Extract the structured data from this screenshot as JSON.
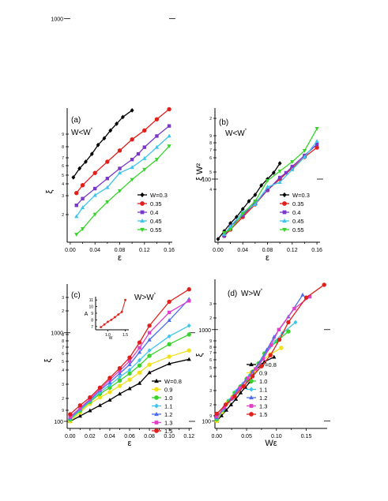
{
  "chart_data": [
    {
      "type": "line",
      "panel_label": "(a)",
      "condition": "W<W*",
      "xlabel": "ε",
      "ylabel": "ξ",
      "xlim": [
        -0.005,
        0.165
      ],
      "ylim": [
        1.0,
        2.2
      ],
      "ylog": true,
      "x_ticks": [
        0.0,
        0.04,
        0.08,
        0.12,
        0.16
      ],
      "x_tick_labels": [
        "0.00",
        "0.04",
        "0.08",
        "0.12",
        "0.16"
      ],
      "y_ticks": [
        1000
      ],
      "y_tick_labels": [
        "1000"
      ],
      "y_minor_labels": [
        "9",
        "8",
        "7",
        "6",
        "5",
        "4",
        "3",
        "2"
      ],
      "legend_position": "bottom-right",
      "legend_prefix": "W=",
      "series": [
        {
          "name": "0.3",
          "color": "#000000",
          "marker": "diamond",
          "x": [
            0.005,
            0.015,
            0.025,
            0.035,
            0.045,
            0.055,
            0.065,
            0.075,
            0.085,
            0.1
          ],
          "y": [
            1.58,
            1.66,
            1.72,
            1.79,
            1.87,
            1.93,
            2.0,
            2.06,
            2.12,
            2.18
          ]
        },
        {
          "name": "0.35",
          "color": "#e0201c",
          "marker": "circle",
          "x": [
            0.01,
            0.02,
            0.04,
            0.06,
            0.08,
            0.1,
            0.12,
            0.14,
            0.16
          ],
          "y": [
            1.44,
            1.51,
            1.62,
            1.72,
            1.82,
            1.92,
            2.0,
            2.1,
            2.19
          ]
        },
        {
          "name": "0.4",
          "color": "#7b38c8",
          "marker": "square",
          "x": [
            0.01,
            0.02,
            0.04,
            0.06,
            0.08,
            0.1,
            0.11,
            0.12,
            0.14,
            0.16
          ],
          "y": [
            1.33,
            1.39,
            1.48,
            1.57,
            1.66,
            1.74,
            1.79,
            1.85,
            1.95,
            2.04
          ]
        },
        {
          "name": "0.45",
          "color": "#3ec4ee",
          "marker": "triangle-up",
          "x": [
            0.01,
            0.02,
            0.04,
            0.06,
            0.08,
            0.1,
            0.12,
            0.14,
            0.16
          ],
          "y": [
            1.23,
            1.31,
            1.42,
            1.49,
            1.62,
            1.67,
            1.75,
            1.85,
            1.95
          ]
        },
        {
          "name": "0.55",
          "color": "#38d42c",
          "marker": "triangle-down",
          "x": [
            0.01,
            0.02,
            0.04,
            0.06,
            0.08,
            0.1,
            0.12,
            0.14,
            0.16
          ],
          "y": [
            1.07,
            1.12,
            1.25,
            1.36,
            1.46,
            1.56,
            1.65,
            1.74,
            1.86
          ]
        }
      ]
    },
    {
      "type": "line",
      "panel_label": "(b)",
      "condition": "W<W*",
      "xlabel": "ε",
      "ylabel": "ξ W²",
      "xlim": [
        -0.005,
        0.165
      ],
      "ylim": [
        1.6,
        2.45
      ],
      "ylog": true,
      "x_ticks": [
        0.0,
        0.04,
        0.08,
        0.12,
        0.16
      ],
      "x_tick_labels": [
        "0.00",
        "0.04",
        "0.08",
        "0.12",
        "0.16"
      ],
      "y_ticks": [
        100
      ],
      "y_tick_labels": [
        "100"
      ],
      "y_minor_labels": [
        "2",
        "9",
        "8",
        "7",
        "6",
        "5",
        "4"
      ],
      "legend_position": "bottom-right",
      "legend_prefix": "W=",
      "series": [
        {
          "name": "0.3",
          "color": "#000000",
          "marker": "diamond",
          "x": [
            0.0,
            0.01,
            0.02,
            0.03,
            0.04,
            0.05,
            0.06,
            0.07,
            0.08,
            0.09,
            0.1
          ],
          "y": [
            1.62,
            1.67,
            1.72,
            1.76,
            1.81,
            1.86,
            1.9,
            1.96,
            2.0,
            2.04,
            2.1
          ]
        },
        {
          "name": "0.35",
          "color": "#e0201c",
          "marker": "circle",
          "x": [
            0.01,
            0.02,
            0.04,
            0.06,
            0.08,
            0.1,
            0.12,
            0.14,
            0.16
          ],
          "y": [
            1.64,
            1.68,
            1.76,
            1.84,
            1.93,
            2.0,
            2.07,
            2.14,
            2.2
          ]
        },
        {
          "name": "0.4",
          "color": "#7b38c8",
          "marker": "square",
          "x": [
            0.01,
            0.02,
            0.04,
            0.06,
            0.08,
            0.1,
            0.11,
            0.12,
            0.14,
            0.16
          ],
          "y": [
            1.64,
            1.7,
            1.77,
            1.85,
            1.93,
            2.01,
            2.04,
            2.08,
            2.15,
            2.22
          ]
        },
        {
          "name": "0.45",
          "color": "#3ec4ee",
          "marker": "triangle-up",
          "x": [
            0.01,
            0.02,
            0.04,
            0.06,
            0.08,
            0.1,
            0.12,
            0.14,
            0.16
          ],
          "y": [
            1.65,
            1.7,
            1.79,
            1.84,
            1.95,
            1.98,
            2.06,
            2.14,
            2.24
          ]
        },
        {
          "name": "0.55",
          "color": "#38d42c",
          "marker": "triangle-down",
          "x": [
            0.01,
            0.02,
            0.04,
            0.06,
            0.08,
            0.1,
            0.12,
            0.14,
            0.16
          ],
          "y": [
            1.66,
            1.68,
            1.78,
            1.86,
            1.99,
            2.05,
            2.11,
            2.18,
            2.32
          ]
        }
      ]
    },
    {
      "type": "line",
      "panel_label": "(c)",
      "condition": "W>W*",
      "xlabel": "ε",
      "ylabel": "ξ",
      "xlim": [
        -0.003,
        0.123
      ],
      "ylim": [
        1.92,
        3.55
      ],
      "ylog": true,
      "x_ticks": [
        0.0,
        0.02,
        0.04,
        0.06,
        0.08,
        0.1,
        0.12
      ],
      "x_tick_labels": [
        "0.00",
        "0.02",
        "0.04",
        "0.06",
        "0.08",
        "0.10",
        "0.12"
      ],
      "y_ticks": [
        100,
        1000
      ],
      "y_tick_labels": [
        "100",
        "1000"
      ],
      "y_minor_labels": [
        "9",
        "2",
        "3",
        "4",
        "5",
        "6",
        "7",
        "8",
        "9",
        "2",
        "3"
      ],
      "legend_position": "bottom-right",
      "legend_prefix": "W=",
      "series": [
        {
          "name": "0.8",
          "color": "#000000",
          "marker": "triangle-up-filled",
          "x": [
            0.0,
            0.01,
            0.02,
            0.03,
            0.04,
            0.05,
            0.06,
            0.07,
            0.08,
            0.1,
            0.12
          ],
          "y": [
            2.0,
            2.06,
            2.12,
            2.18,
            2.24,
            2.31,
            2.37,
            2.43,
            2.55,
            2.65,
            2.7
          ]
        },
        {
          "name": "0.9",
          "color": "#f2e019",
          "marker": "circle",
          "x": [
            0.0,
            0.01,
            0.02,
            0.03,
            0.04,
            0.05,
            0.06,
            0.07,
            0.08,
            0.1,
            0.12
          ],
          "y": [
            2.0,
            2.1,
            2.2,
            2.27,
            2.33,
            2.4,
            2.47,
            2.55,
            2.64,
            2.73,
            2.8
          ]
        },
        {
          "name": "1.0",
          "color": "#38d42c",
          "marker": "circle",
          "x": [
            0.0,
            0.01,
            0.02,
            0.03,
            0.04,
            0.05,
            0.06,
            0.07,
            0.08,
            0.1,
            0.12
          ],
          "y": [
            2.02,
            2.12,
            2.22,
            2.31,
            2.38,
            2.46,
            2.54,
            2.63,
            2.74,
            2.87,
            2.98
          ]
        },
        {
          "name": "1.1",
          "color": "#3ec4ee",
          "marker": "diamond",
          "x": [
            0.0,
            0.01,
            0.02,
            0.03,
            0.04,
            0.05,
            0.06,
            0.07,
            0.08,
            0.1,
            0.12
          ],
          "y": [
            2.03,
            2.13,
            2.23,
            2.33,
            2.41,
            2.5,
            2.58,
            2.69,
            2.8,
            2.96,
            3.08
          ]
        },
        {
          "name": "1.2",
          "color": "#4c6cf0",
          "marker": "triangle-up",
          "x": [
            0.0,
            0.01,
            0.02,
            0.03,
            0.04,
            0.05,
            0.06,
            0.07,
            0.08,
            0.1,
            0.12
          ],
          "y": [
            2.04,
            2.14,
            2.24,
            2.35,
            2.44,
            2.54,
            2.64,
            2.78,
            2.92,
            3.14,
            3.38
          ]
        },
        {
          "name": "1.3",
          "color": "#e040c8",
          "marker": "square",
          "x": [
            0.0,
            0.01,
            0.02,
            0.03,
            0.04,
            0.05,
            0.06,
            0.07,
            0.08,
            0.1,
            0.12
          ],
          "y": [
            2.05,
            2.15,
            2.25,
            2.36,
            2.47,
            2.57,
            2.68,
            2.83,
            3.0,
            3.23,
            3.36
          ]
        },
        {
          "name": "1.5",
          "color": "#e0201c",
          "marker": "circle",
          "x": [
            0.0,
            0.01,
            0.02,
            0.03,
            0.04,
            0.05,
            0.06,
            0.07,
            0.08,
            0.1,
            0.12
          ],
          "y": [
            2.08,
            2.18,
            2.27,
            2.38,
            2.49,
            2.6,
            2.72,
            2.89,
            3.08,
            3.35,
            3.49
          ]
        }
      ],
      "inset": {
        "type": "scatter",
        "ylabel": "A",
        "xlabel": "W",
        "xlim": [
          0.65,
          1.6
        ],
        "ylim": [
          6.5,
          11.5
        ],
        "x_tick_labels": [
          "1.0",
          "1.5"
        ],
        "x_ticks": [
          1.0,
          1.5
        ],
        "y_ticks": [
          7,
          8,
          9,
          10,
          11
        ],
        "y_tick_labels": [
          "7",
          "8",
          "9",
          "10",
          "11"
        ],
        "color": "#e0201c",
        "x": [
          0.8,
          0.9,
          1.0,
          1.1,
          1.2,
          1.3,
          1.4,
          1.5
        ],
        "y": [
          6.9,
          7.3,
          7.7,
          8.0,
          8.4,
          8.8,
          9.2,
          11.0
        ]
      }
    },
    {
      "type": "line",
      "panel_label": "(d)",
      "condition": "W>W*",
      "xlabel": "Wε",
      "ylabel": "ξ",
      "xlim": [
        -0.003,
        0.185
      ],
      "ylim": [
        1.92,
        3.55
      ],
      "ylog": true,
      "x_ticks": [
        0.0,
        0.05,
        0.1,
        0.15
      ],
      "x_tick_labels": [
        "0.00",
        "0.05",
        "0.10",
        "0.15"
      ],
      "y_ticks": [
        100,
        1000
      ],
      "y_tick_labels": [
        "100",
        "1000"
      ],
      "y_minor_labels": [
        "9",
        "2",
        "3",
        "4",
        "5",
        "6",
        "7",
        "8",
        "9",
        "2",
        "3"
      ],
      "legend_position": "bottom-right",
      "legend_prefix": "W=",
      "series": [
        {
          "name": "0.8",
          "color": "#000000",
          "marker": "triangle-up-filled",
          "x": [
            0.0,
            0.008,
            0.016,
            0.024,
            0.032,
            0.04,
            0.048,
            0.056,
            0.064,
            0.08,
            0.096
          ],
          "y": [
            2.0,
            2.06,
            2.12,
            2.18,
            2.24,
            2.31,
            2.37,
            2.43,
            2.55,
            2.65,
            2.7
          ]
        },
        {
          "name": "0.9",
          "color": "#f2e019",
          "marker": "circle",
          "x": [
            0.0,
            0.009,
            0.018,
            0.027,
            0.036,
            0.045,
            0.054,
            0.063,
            0.072,
            0.09,
            0.108
          ],
          "y": [
            2.0,
            2.1,
            2.2,
            2.27,
            2.33,
            2.4,
            2.47,
            2.55,
            2.64,
            2.73,
            2.8
          ]
        },
        {
          "name": "1.0",
          "color": "#38d42c",
          "marker": "circle",
          "x": [
            0.0,
            0.01,
            0.02,
            0.03,
            0.04,
            0.05,
            0.06,
            0.07,
            0.08,
            0.1,
            0.12
          ],
          "y": [
            2.02,
            2.12,
            2.22,
            2.31,
            2.38,
            2.46,
            2.54,
            2.63,
            2.74,
            2.87,
            2.98
          ]
        },
        {
          "name": "1.1",
          "color": "#3ec4ee",
          "marker": "diamond",
          "x": [
            0.0,
            0.011,
            0.022,
            0.033,
            0.044,
            0.055,
            0.066,
            0.077,
            0.088,
            0.11,
            0.132
          ],
          "y": [
            2.03,
            2.13,
            2.23,
            2.33,
            2.41,
            2.5,
            2.58,
            2.69,
            2.8,
            2.96,
            3.08
          ]
        },
        {
          "name": "1.2",
          "color": "#4c6cf0",
          "marker": "triangle-up",
          "x": [
            0.0,
            0.012,
            0.024,
            0.036,
            0.048,
            0.06,
            0.072,
            0.084,
            0.096,
            0.12,
            0.144
          ],
          "y": [
            2.04,
            2.14,
            2.24,
            2.35,
            2.44,
            2.54,
            2.64,
            2.78,
            2.92,
            3.14,
            3.38
          ]
        },
        {
          "name": "1.3",
          "color": "#e040c8",
          "marker": "square",
          "x": [
            0.0,
            0.013,
            0.026,
            0.039,
            0.052,
            0.065,
            0.078,
            0.091,
            0.104,
            0.13,
            0.156
          ],
          "y": [
            2.05,
            2.15,
            2.25,
            2.36,
            2.47,
            2.57,
            2.68,
            2.83,
            3.0,
            3.23,
            3.36
          ]
        },
        {
          "name": "1.5",
          "color": "#e0201c",
          "marker": "circle",
          "x": [
            0.0,
            0.015,
            0.03,
            0.045,
            0.06,
            0.075,
            0.09,
            0.105,
            0.12,
            0.15,
            0.18
          ],
          "y": [
            2.08,
            2.18,
            2.27,
            2.38,
            2.49,
            2.6,
            2.72,
            2.89,
            3.08,
            3.35,
            3.49
          ]
        }
      ]
    }
  ]
}
